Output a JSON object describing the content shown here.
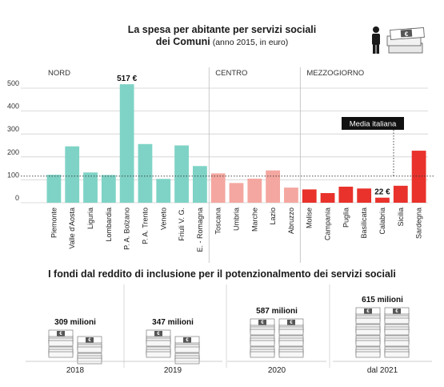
{
  "title": {
    "line1": "La spesa per abitante per servizi sociali",
    "line2_bold": "dei Comuni",
    "line2_note": " (anno 2015, in euro)"
  },
  "colors": {
    "nord": "#7ed3c6",
    "centro": "#f4a7a0",
    "mezzogiorno": "#e8322b",
    "grid": "#cfcfcf",
    "dark": "#1a1a1a"
  },
  "icons": {
    "person": "person-icon",
    "money": "euro-banknote-stack-icon"
  },
  "chart_data": {
    "type": "bar",
    "groups": [
      "NORD",
      "CENTRO",
      "MEZZOGIORNO"
    ],
    "categories": [
      "Piemonte",
      "Valle d'Aosta",
      "Liguria",
      "Lombardia",
      "P. A. Bolzano",
      "P. A. Trento",
      "Veneto",
      "Friuli V. G.",
      "E. - Romagna",
      "Toscana",
      "Umbria",
      "Marche",
      "Lazio",
      "Abruzzo",
      "Molise",
      "Campania",
      "Puglia",
      "Basilicata",
      "Calabria",
      "Sicilia",
      "Sardegna"
    ],
    "group_of": [
      "NORD",
      "NORD",
      "NORD",
      "NORD",
      "NORD",
      "NORD",
      "NORD",
      "NORD",
      "NORD",
      "CENTRO",
      "CENTRO",
      "CENTRO",
      "CENTRO",
      "CENTRO",
      "MEZZOGIORNO",
      "MEZZOGIORNO",
      "MEZZOGIORNO",
      "MEZZOGIORNO",
      "MEZZOGIORNO",
      "MEZZOGIORNO",
      "MEZZOGIORNO"
    ],
    "values": [
      122,
      246,
      132,
      121,
      517,
      256,
      104,
      250,
      160,
      128,
      86,
      105,
      141,
      66,
      58,
      42,
      70,
      62,
      22,
      74,
      227
    ],
    "data_labels": {
      "4": "517 €",
      "18": "22 €"
    },
    "ylim": [
      0,
      530
    ],
    "yticks": [
      0,
      100,
      200,
      300,
      400,
      500
    ],
    "reference_line": {
      "label": "Media italiana",
      "value": 116
    },
    "grid": true
  },
  "section2": {
    "title": "I fondi dal reddito di inclusione per il potenzionalmento dei servizi sociali",
    "items": [
      {
        "year": "2018",
        "amount": "309 milioni",
        "stacks": 2,
        "levels": 2
      },
      {
        "year": "2019",
        "amount": "347 milioni",
        "stacks": 2,
        "levels": 2
      },
      {
        "year": "2020",
        "amount": "587 milioni",
        "stacks": 2,
        "levels": 3
      },
      {
        "year": "dal 2021",
        "amount": "615 milioni",
        "stacks": 2,
        "levels": 4
      }
    ]
  }
}
